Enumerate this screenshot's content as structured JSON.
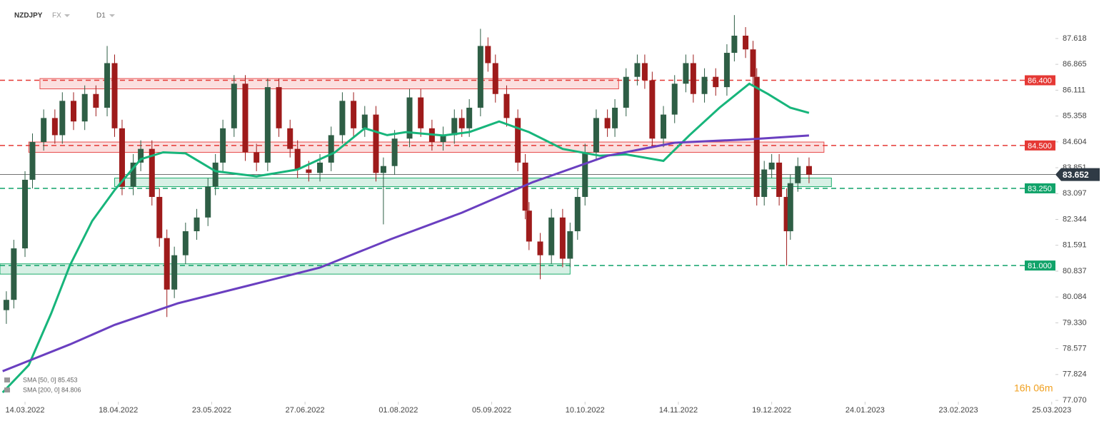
{
  "header": {
    "symbol": "NZDJPY",
    "market": "FX",
    "interval": "D1"
  },
  "timer": "16h 06m",
  "chart_data": {
    "type": "candlestick",
    "xlim": [
      -6.7,
      276
    ],
    "ylim": [
      77.03,
      88.74
    ],
    "xticks": [
      {
        "value": 0,
        "label": "14.03.2022"
      },
      {
        "value": 25,
        "label": "18.04.2022"
      },
      {
        "value": 50,
        "label": "23.05.2022"
      },
      {
        "value": 75,
        "label": "27.06.2022"
      },
      {
        "value": 100,
        "label": "01.08.2022"
      },
      {
        "value": 125,
        "label": "05.09.2022"
      },
      {
        "value": 150,
        "label": "10.10.2022"
      },
      {
        "value": 175,
        "label": "14.11.2022"
      },
      {
        "value": 200,
        "label": "19.12.2022"
      },
      {
        "value": 225,
        "label": "24.01.2023"
      },
      {
        "value": 250,
        "label": "23.02.2023"
      },
      {
        "value": 275,
        "label": "25.03.2023"
      }
    ],
    "yticks": [
      87.618,
      86.865,
      86.111,
      85.358,
      84.604,
      83.851,
      83.097,
      82.344,
      81.591,
      80.837,
      80.084,
      {
        "value": 79.33,
        "label": "79.330"
      },
      78.577,
      77.824,
      {
        "value": 77.07,
        "label": "77.070"
      }
    ],
    "up_color": "#2e5e45",
    "down_color": "#9e1b1b",
    "x": [
      -5,
      -3,
      0,
      2,
      5,
      8,
      10,
      13,
      16,
      19,
      22,
      24,
      26,
      29,
      31,
      34,
      36,
      38,
      40,
      43,
      46,
      49,
      51,
      53,
      56,
      59,
      62,
      65,
      68,
      71,
      73,
      76,
      79,
      82,
      85,
      88,
      91,
      94,
      96,
      99,
      103,
      106,
      109,
      112,
      115,
      117,
      119,
      122,
      124,
      126,
      129,
      132,
      134,
      135,
      138,
      141,
      144,
      146,
      148,
      150,
      153,
      156,
      158,
      161,
      164,
      166,
      168,
      171,
      174,
      177,
      179,
      182,
      185,
      188,
      190,
      193,
      195,
      196,
      198,
      200,
      202,
      204,
      205,
      207,
      210
    ],
    "open": [
      79.7,
      80.0,
      81.5,
      83.5,
      84.6,
      85.3,
      84.8,
      85.8,
      85.2,
      86.0,
      85.6,
      86.9,
      85.0,
      83.3,
      84.0,
      84.4,
      83.0,
      81.8,
      80.3,
      81.3,
      82.0,
      82.4,
      83.3,
      84.0,
      85.0,
      86.3,
      84.3,
      84.0,
      86.2,
      85.0,
      84.4,
      83.8,
      83.7,
      84.0,
      84.8,
      85.8,
      85.0,
      85.4,
      83.7,
      83.9,
      84.7,
      85.9,
      85.0,
      84.6,
      84.8,
      85.3,
      85.0,
      85.6,
      87.4,
      86.9,
      86.0,
      85.3,
      84.0,
      82.6,
      81.7,
      81.3,
      82.4,
      81.2,
      82.0,
      83.0,
      84.3,
      85.3,
      85.0,
      85.6,
      86.5,
      86.9,
      86.4,
      84.7,
      85.4,
      86.3,
      86.9,
      86.0,
      86.5,
      86.2,
      87.2,
      87.7,
      87.3,
      86.5,
      83.0,
      83.8,
      84.0,
      83.0,
      82.0,
      83.4,
      83.9
    ],
    "high": [
      80.25,
      81.75,
      83.75,
      84.85,
      85.55,
      85.55,
      86.05,
      86.05,
      86.25,
      86.25,
      87.4,
      87.15,
      85.25,
      84.25,
      84.65,
      84.65,
      83.25,
      82.05,
      81.55,
      82.25,
      82.65,
      83.55,
      84.25,
      85.25,
      86.55,
      86.55,
      84.55,
      86.45,
      86.45,
      85.25,
      84.65,
      84.05,
      84.25,
      85.05,
      86.05,
      86.05,
      85.65,
      85.65,
      84.15,
      84.95,
      86.15,
      86.15,
      85.25,
      85.05,
      85.55,
      85.55,
      85.85,
      87.9,
      87.65,
      87.15,
      86.25,
      85.55,
      84.25,
      82.85,
      81.95,
      82.65,
      82.65,
      82.25,
      83.25,
      84.55,
      85.55,
      85.55,
      85.85,
      86.75,
      87.15,
      87.15,
      86.65,
      85.65,
      86.55,
      87.15,
      87.15,
      86.75,
      86.75,
      87.45,
      88.3,
      87.95,
      87.55,
      86.75,
      84.05,
      84.25,
      84.25,
      83.25,
      83.65,
      84.15,
      84.15
    ],
    "low": [
      79.3,
      79.75,
      81.25,
      83.25,
      84.35,
      84.55,
      84.55,
      84.95,
      84.95,
      85.35,
      85.35,
      84.75,
      83.05,
      83.05,
      83.75,
      82.75,
      81.55,
      79.5,
      80.05,
      81.05,
      81.75,
      82.15,
      83.05,
      83.75,
      84.75,
      84.05,
      83.75,
      83.75,
      84.75,
      84.15,
      83.55,
      83.45,
      83.45,
      83.75,
      84.55,
      84.75,
      84.75,
      83.45,
      82.2,
      83.65,
      84.45,
      84.75,
      84.35,
      84.35,
      84.55,
      84.75,
      84.75,
      85.35,
      86.65,
      85.75,
      85.05,
      83.75,
      82.35,
      81.45,
      80.6,
      81.05,
      80.95,
      80.95,
      81.75,
      82.75,
      84.05,
      84.75,
      84.75,
      85.35,
      86.25,
      86.15,
      84.45,
      84.45,
      85.15,
      86.05,
      85.75,
      85.75,
      85.95,
      85.95,
      86.95,
      87.05,
      86.25,
      82.75,
      82.75,
      83.55,
      82.75,
      81.0,
      81.75,
      83.15,
      83.4
    ],
    "close": [
      80.0,
      81.5,
      83.5,
      84.6,
      85.3,
      84.8,
      85.8,
      85.2,
      86.0,
      85.6,
      86.9,
      85.0,
      83.3,
      84.0,
      84.4,
      83.0,
      81.8,
      80.3,
      81.3,
      82.0,
      82.4,
      83.3,
      84.0,
      85.0,
      86.3,
      84.3,
      84.0,
      86.2,
      85.0,
      84.4,
      83.8,
      83.7,
      84.0,
      84.8,
      85.8,
      85.0,
      85.4,
      83.7,
      83.9,
      84.7,
      85.9,
      85.0,
      84.6,
      84.8,
      85.3,
      85.0,
      85.6,
      87.4,
      86.9,
      86.0,
      85.3,
      84.0,
      82.6,
      81.7,
      81.3,
      82.4,
      81.2,
      82.0,
      83.0,
      84.3,
      85.3,
      85.0,
      85.6,
      86.5,
      86.9,
      86.4,
      84.7,
      85.4,
      86.3,
      86.9,
      86.0,
      86.5,
      86.2,
      87.2,
      87.7,
      87.3,
      86.5,
      83.0,
      83.8,
      84.0,
      83.0,
      82.0,
      83.4,
      83.9,
      83.65
    ],
    "series": [
      {
        "name": "SMA [50, 0] 85.453",
        "color": "#17b57b",
        "x": [
          -6,
          1,
          7,
          12,
          18,
          24,
          31,
          37,
          43,
          51,
          62,
          73,
          83,
          91,
          97,
          102,
          112,
          119,
          127,
          135,
          144,
          154,
          161,
          171,
          178,
          186,
          194,
          199,
          205,
          210
        ],
        "values": [
          77.3,
          78.1,
          79.6,
          81.0,
          82.3,
          83.2,
          84.1,
          84.3,
          84.27,
          83.75,
          83.6,
          83.8,
          84.3,
          85.0,
          84.8,
          84.89,
          84.79,
          84.89,
          85.2,
          84.89,
          84.4,
          84.2,
          84.24,
          84.05,
          84.8,
          85.6,
          86.3,
          86.0,
          85.6,
          85.45
        ]
      },
      {
        "name": "SMA [200, 0] 84.806",
        "color": "#6a3fc0",
        "x": [
          -6,
          12,
          24,
          41,
          60,
          79,
          98,
          117,
          136,
          156,
          174,
          194,
          210
        ],
        "values": [
          77.92,
          78.7,
          79.27,
          79.9,
          80.42,
          80.94,
          81.77,
          82.54,
          83.43,
          84.2,
          84.58,
          84.68,
          84.79
        ]
      }
    ],
    "zones": [
      {
        "x0": 4,
        "x1": 159,
        "low": 86.15,
        "high": 86.45,
        "color": "#e74c4c"
      },
      {
        "x0": 1,
        "x1": 214,
        "low": 84.3,
        "high": 84.6,
        "color": "#e74c4c"
      },
      {
        "x0": 24,
        "x1": 216,
        "low": 83.3,
        "high": 83.55,
        "color": "#1fae6e"
      },
      {
        "x0": -6.7,
        "x1": 146,
        "low": 80.75,
        "high": 81.05,
        "color": "#1fae6e"
      }
    ],
    "levels": [
      {
        "value": 86.4,
        "label": "86.400",
        "color": "#e53935"
      },
      {
        "value": 84.5,
        "label": "84.500",
        "color": "#e53935"
      },
      {
        "value": 83.25,
        "label": "83.250",
        "color": "#11a36a"
      },
      {
        "value": 81.0,
        "label": "81.000",
        "color": "#11a36a"
      }
    ],
    "last_price": 83.652
  }
}
